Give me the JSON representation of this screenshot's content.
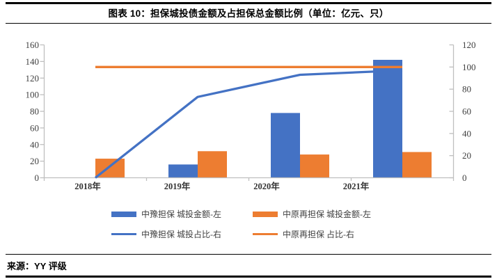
{
  "figure": {
    "title": "图表 10：担保城投债金额及占担保总金额比例（单位：亿元、只）",
    "source": "来源：YY 评级"
  },
  "colors": {
    "blue": "#4472C4",
    "orange": "#ED7D31",
    "axis_line": "#BFBFBF",
    "tick_text": "#404040",
    "category_text": "#333333",
    "rule": "#000000"
  },
  "chart_data": {
    "type": "combo-bar-line",
    "title": "担保城投债金额及占担保总金额比例",
    "units": "亿元、只",
    "categories": [
      "2018年",
      "2019年",
      "2020年",
      "2021年"
    ],
    "series": [
      {
        "name": "中豫担保 城投金额-左",
        "type": "bar",
        "axis": "left",
        "color": "#4472C4",
        "values": [
          0,
          16,
          78,
          142
        ]
      },
      {
        "name": "中原再担保 城投金额-左",
        "type": "bar",
        "axis": "left",
        "color": "#ED7D31",
        "values": [
          23,
          32,
          28,
          31
        ]
      },
      {
        "name": "中豫担保 城投占比-右",
        "type": "line",
        "axis": "right",
        "color": "#4472C4",
        "values": [
          0,
          73,
          93,
          97
        ]
      },
      {
        "name": "中原再担保 占比-右",
        "type": "line",
        "axis": "right",
        "color": "#ED7D31",
        "values": [
          100,
          100,
          100,
          100
        ]
      }
    ],
    "left_axis": {
      "min": 0,
      "max": 160,
      "step": 20
    },
    "right_axis": {
      "min": 0,
      "max": 120,
      "step": 20
    },
    "grid": false,
    "legend_position": "bottom"
  }
}
